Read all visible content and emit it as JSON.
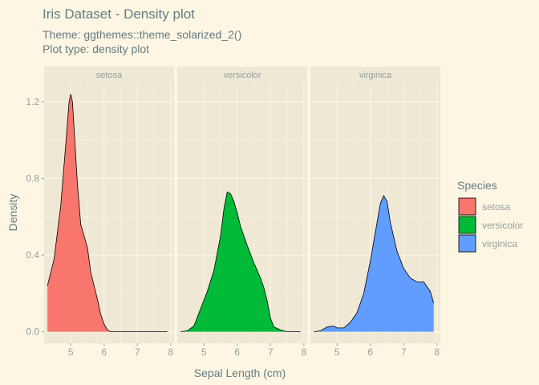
{
  "chart_data": {
    "type": "area",
    "title": "Iris Dataset - Density plot",
    "subtitle_lines": [
      "Theme: ggthemes::theme_solarized_2()",
      "Plot type: density plot"
    ],
    "xlabel": "Sepal Length (cm)",
    "ylabel": "Density",
    "xlim": [
      4.2,
      8.1
    ],
    "ylim": [
      -0.06,
      1.3
    ],
    "x_ticks": [
      5,
      6,
      7,
      8
    ],
    "y_ticks": [
      0.0,
      0.4,
      0.8,
      1.2
    ],
    "y_tick_labels": [
      "0.0",
      "0.4",
      "0.8",
      "1.2"
    ],
    "grid": true,
    "legend": {
      "title": "Species",
      "placement": "right"
    },
    "colors": {
      "background": "#fdf6e3",
      "panel": "#eee8d5",
      "grid": "#fdf6e3",
      "outline": "#000000"
    },
    "series": [
      {
        "name": "setosa",
        "color": "#F8766D",
        "points": [
          [
            4.3,
            0.24
          ],
          [
            4.5,
            0.38
          ],
          [
            4.7,
            0.66
          ],
          [
            4.85,
            0.98
          ],
          [
            4.95,
            1.2
          ],
          [
            5.0,
            1.24
          ],
          [
            5.05,
            1.2
          ],
          [
            5.1,
            1.06
          ],
          [
            5.2,
            0.77
          ],
          [
            5.3,
            0.56
          ],
          [
            5.4,
            0.5
          ],
          [
            5.5,
            0.44
          ],
          [
            5.6,
            0.31
          ],
          [
            5.7,
            0.24
          ],
          [
            5.8,
            0.17
          ],
          [
            5.9,
            0.09
          ],
          [
            6.0,
            0.04
          ],
          [
            6.1,
            0.01
          ],
          [
            6.2,
            0.0
          ],
          [
            7.0,
            0.0
          ],
          [
            7.9,
            0.0
          ]
        ]
      },
      {
        "name": "versicolor",
        "color": "#00BA38",
        "points": [
          [
            4.3,
            0.0
          ],
          [
            4.5,
            0.005
          ],
          [
            4.7,
            0.03
          ],
          [
            4.9,
            0.12
          ],
          [
            5.1,
            0.21
          ],
          [
            5.3,
            0.32
          ],
          [
            5.5,
            0.5
          ],
          [
            5.6,
            0.64
          ],
          [
            5.7,
            0.73
          ],
          [
            5.8,
            0.72
          ],
          [
            5.9,
            0.68
          ],
          [
            6.0,
            0.62
          ],
          [
            6.1,
            0.55
          ],
          [
            6.3,
            0.45
          ],
          [
            6.5,
            0.36
          ],
          [
            6.7,
            0.28
          ],
          [
            6.8,
            0.23
          ],
          [
            6.9,
            0.16
          ],
          [
            7.0,
            0.07
          ],
          [
            7.1,
            0.025
          ],
          [
            7.3,
            0.01
          ],
          [
            7.5,
            0.0
          ],
          [
            7.9,
            0.0
          ]
        ]
      },
      {
        "name": "virginica",
        "color": "#619CFF",
        "points": [
          [
            4.3,
            0.0
          ],
          [
            4.5,
            0.005
          ],
          [
            4.7,
            0.025
          ],
          [
            4.9,
            0.03
          ],
          [
            5.0,
            0.02
          ],
          [
            5.2,
            0.02
          ],
          [
            5.4,
            0.05
          ],
          [
            5.6,
            0.1
          ],
          [
            5.8,
            0.2
          ],
          [
            6.0,
            0.37
          ],
          [
            6.2,
            0.57
          ],
          [
            6.3,
            0.67
          ],
          [
            6.4,
            0.71
          ],
          [
            6.5,
            0.68
          ],
          [
            6.6,
            0.57
          ],
          [
            6.8,
            0.42
          ],
          [
            7.0,
            0.33
          ],
          [
            7.2,
            0.28
          ],
          [
            7.4,
            0.26
          ],
          [
            7.6,
            0.26
          ],
          [
            7.8,
            0.21
          ],
          [
            7.9,
            0.15
          ]
        ]
      }
    ]
  }
}
